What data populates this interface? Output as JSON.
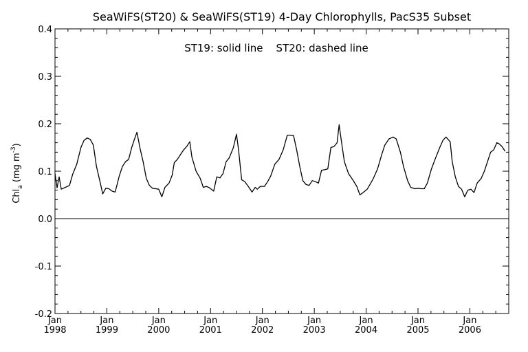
{
  "chart_data": {
    "type": "line",
    "title": "SeaWiFS(ST20) & SeaWiFS(ST19) 4-Day Chlorophylls, PacS35 Subset",
    "annotation": "ST19: solid line    ST20: dashed line",
    "ylabel": {
      "main": "Chl",
      "subscript": "a",
      "unit_open": " (mg m",
      "unit_sup": "-3",
      "unit_close": ")"
    },
    "xlabel": "",
    "xlim": [
      1998.0,
      2006.75
    ],
    "ylim": [
      -0.2,
      0.4
    ],
    "y_ticks": [
      {
        "value": -0.2,
        "label": "-0.2"
      },
      {
        "value": -0.1,
        "label": "-0.1"
      },
      {
        "value": 0.0,
        "label": "0.0"
      },
      {
        "value": 0.1,
        "label": "0.1"
      },
      {
        "value": 0.2,
        "label": "0.2"
      },
      {
        "value": 0.3,
        "label": "0.3"
      },
      {
        "value": 0.4,
        "label": "0.4"
      }
    ],
    "x_ticks": [
      {
        "value": 1998,
        "month": "Jan",
        "year": "1998"
      },
      {
        "value": 1999,
        "month": "Jan",
        "year": "1999"
      },
      {
        "value": 2000,
        "month": "Jan",
        "year": "2000"
      },
      {
        "value": 2001,
        "month": "Jan",
        "year": "2001"
      },
      {
        "value": 2002,
        "month": "Jan",
        "year": "2002"
      },
      {
        "value": 2003,
        "month": "Jan",
        "year": "2003"
      },
      {
        "value": 2004,
        "month": "Jan",
        "year": "2004"
      },
      {
        "value": 2005,
        "month": "Jan",
        "year": "2005"
      },
      {
        "value": 2006,
        "month": "Jan",
        "year": "2006"
      }
    ],
    "reference_line": 0.0,
    "grid": false,
    "series": [
      {
        "name": "ST19",
        "style": "solid",
        "color": "#000000",
        "points": [
          [
            1998.0,
            0.095
          ],
          [
            1998.04,
            0.065
          ],
          [
            1998.08,
            0.088
          ],
          [
            1998.12,
            0.062
          ],
          [
            1998.2,
            0.066
          ],
          [
            1998.28,
            0.07
          ],
          [
            1998.34,
            0.093
          ],
          [
            1998.42,
            0.115
          ],
          [
            1998.5,
            0.15
          ],
          [
            1998.56,
            0.165
          ],
          [
            1998.62,
            0.17
          ],
          [
            1998.68,
            0.167
          ],
          [
            1998.74,
            0.155
          ],
          [
            1998.8,
            0.11
          ],
          [
            1998.88,
            0.072
          ],
          [
            1998.92,
            0.052
          ],
          [
            1998.98,
            0.064
          ],
          [
            1999.04,
            0.063
          ],
          [
            1999.1,
            0.058
          ],
          [
            1999.16,
            0.056
          ],
          [
            1999.24,
            0.09
          ],
          [
            1999.3,
            0.11
          ],
          [
            1999.36,
            0.12
          ],
          [
            1999.42,
            0.125
          ],
          [
            1999.48,
            0.15
          ],
          [
            1999.54,
            0.17
          ],
          [
            1999.58,
            0.182
          ],
          [
            1999.64,
            0.148
          ],
          [
            1999.7,
            0.12
          ],
          [
            1999.76,
            0.085
          ],
          [
            1999.82,
            0.07
          ],
          [
            1999.88,
            0.064
          ],
          [
            1999.94,
            0.063
          ],
          [
            2000.0,
            0.062
          ],
          [
            2000.06,
            0.046
          ],
          [
            2000.12,
            0.066
          ],
          [
            2000.2,
            0.075
          ],
          [
            2000.26,
            0.092
          ],
          [
            2000.3,
            0.118
          ],
          [
            2000.36,
            0.125
          ],
          [
            2000.42,
            0.135
          ],
          [
            2000.48,
            0.145
          ],
          [
            2000.54,
            0.152
          ],
          [
            2000.6,
            0.162
          ],
          [
            2000.64,
            0.13
          ],
          [
            2000.72,
            0.1
          ],
          [
            2000.8,
            0.085
          ],
          [
            2000.86,
            0.066
          ],
          [
            2000.92,
            0.068
          ],
          [
            2000.98,
            0.065
          ],
          [
            2001.06,
            0.058
          ],
          [
            2001.12,
            0.088
          ],
          [
            2001.18,
            0.086
          ],
          [
            2001.24,
            0.095
          ],
          [
            2001.3,
            0.12
          ],
          [
            2001.36,
            0.128
          ],
          [
            2001.44,
            0.15
          ],
          [
            2001.5,
            0.178
          ],
          [
            2001.54,
            0.145
          ],
          [
            2001.6,
            0.082
          ],
          [
            2001.66,
            0.078
          ],
          [
            2001.74,
            0.066
          ],
          [
            2001.8,
            0.056
          ],
          [
            2001.86,
            0.066
          ],
          [
            2001.9,
            0.062
          ],
          [
            2001.96,
            0.068
          ],
          [
            2002.04,
            0.068
          ],
          [
            2002.1,
            0.078
          ],
          [
            2002.16,
            0.09
          ],
          [
            2002.24,
            0.115
          ],
          [
            2002.32,
            0.125
          ],
          [
            2002.4,
            0.145
          ],
          [
            2002.48,
            0.176
          ],
          [
            2002.54,
            0.176
          ],
          [
            2002.6,
            0.175
          ],
          [
            2002.66,
            0.145
          ],
          [
            2002.72,
            0.11
          ],
          [
            2002.78,
            0.08
          ],
          [
            2002.84,
            0.072
          ],
          [
            2002.9,
            0.07
          ],
          [
            2002.96,
            0.08
          ],
          [
            2003.02,
            0.078
          ],
          [
            2003.08,
            0.075
          ],
          [
            2003.14,
            0.102
          ],
          [
            2003.2,
            0.103
          ],
          [
            2003.26,
            0.105
          ],
          [
            2003.32,
            0.15
          ],
          [
            2003.38,
            0.152
          ],
          [
            2003.44,
            0.16
          ],
          [
            2003.48,
            0.198
          ],
          [
            2003.52,
            0.165
          ],
          [
            2003.58,
            0.12
          ],
          [
            2003.66,
            0.095
          ],
          [
            2003.74,
            0.082
          ],
          [
            2003.82,
            0.068
          ],
          [
            2003.88,
            0.05
          ],
          [
            2003.94,
            0.055
          ],
          [
            2004.02,
            0.062
          ],
          [
            2004.08,
            0.073
          ],
          [
            2004.14,
            0.085
          ],
          [
            2004.22,
            0.105
          ],
          [
            2004.3,
            0.135
          ],
          [
            2004.36,
            0.155
          ],
          [
            2004.44,
            0.168
          ],
          [
            2004.52,
            0.172
          ],
          [
            2004.58,
            0.168
          ],
          [
            2004.66,
            0.14
          ],
          [
            2004.72,
            0.11
          ],
          [
            2004.8,
            0.08
          ],
          [
            2004.86,
            0.066
          ],
          [
            2004.94,
            0.063
          ],
          [
            2005.0,
            0.064
          ],
          [
            2005.06,
            0.063
          ],
          [
            2005.12,
            0.063
          ],
          [
            2005.18,
            0.075
          ],
          [
            2005.26,
            0.105
          ],
          [
            2005.34,
            0.128
          ],
          [
            2005.42,
            0.15
          ],
          [
            2005.48,
            0.165
          ],
          [
            2005.54,
            0.172
          ],
          [
            2005.62,
            0.162
          ],
          [
            2005.66,
            0.12
          ],
          [
            2005.72,
            0.088
          ],
          [
            2005.78,
            0.068
          ],
          [
            2005.84,
            0.062
          ],
          [
            2005.9,
            0.046
          ],
          [
            2005.96,
            0.06
          ],
          [
            2006.02,
            0.062
          ],
          [
            2006.08,
            0.055
          ],
          [
            2006.14,
            0.075
          ],
          [
            2006.22,
            0.085
          ],
          [
            2006.28,
            0.1
          ],
          [
            2006.34,
            0.12
          ],
          [
            2006.4,
            0.14
          ],
          [
            2006.46,
            0.145
          ],
          [
            2006.52,
            0.16
          ],
          [
            2006.56,
            0.158
          ],
          [
            2006.62,
            0.152
          ],
          [
            2006.68,
            0.142
          ]
        ]
      }
    ]
  }
}
